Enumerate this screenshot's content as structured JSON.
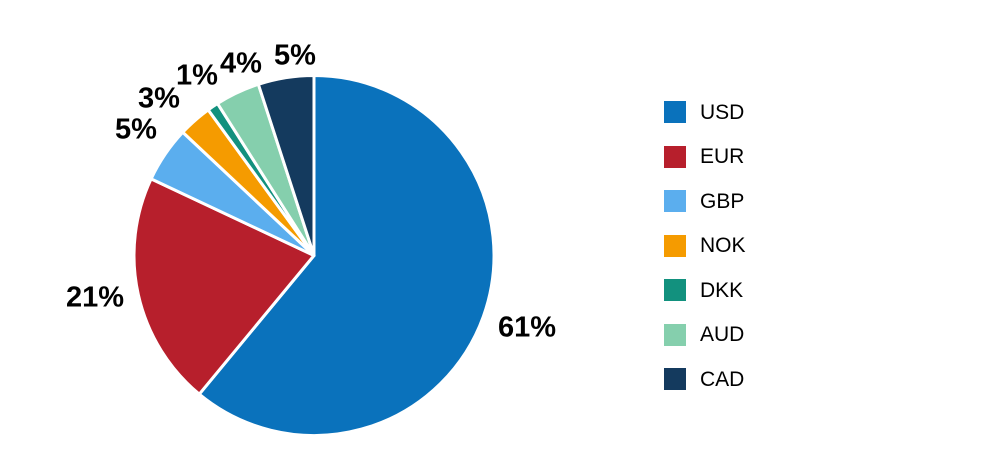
{
  "figure": {
    "background": "#FFFFFF"
  },
  "chart_data": {
    "type": "pie",
    "title": "",
    "unit": "%",
    "categories": [
      "USD",
      "EUR",
      "GBP",
      "NOK",
      "DKK",
      "AUD",
      "CAD"
    ],
    "values": [
      61,
      21,
      5,
      3,
      1,
      4,
      5
    ],
    "data_labels": [
      "61%",
      "21%",
      "5%",
      "3%",
      "1%",
      "4%",
      "5%"
    ],
    "colors": [
      "#0A72BC",
      "#B71F2C",
      "#5BAEEE",
      "#F59B00",
      "#12917E",
      "#85CFAD",
      "#143A5E"
    ],
    "start_angle_deg": 0,
    "direction": "clockwise",
    "slice_border_color": "#FFFFFF",
    "data_label_color": "#000000",
    "legend": {
      "position": "right",
      "entries": [
        "USD",
        "EUR",
        "GBP",
        "NOK",
        "DKK",
        "AUD",
        "CAD"
      ]
    }
  }
}
